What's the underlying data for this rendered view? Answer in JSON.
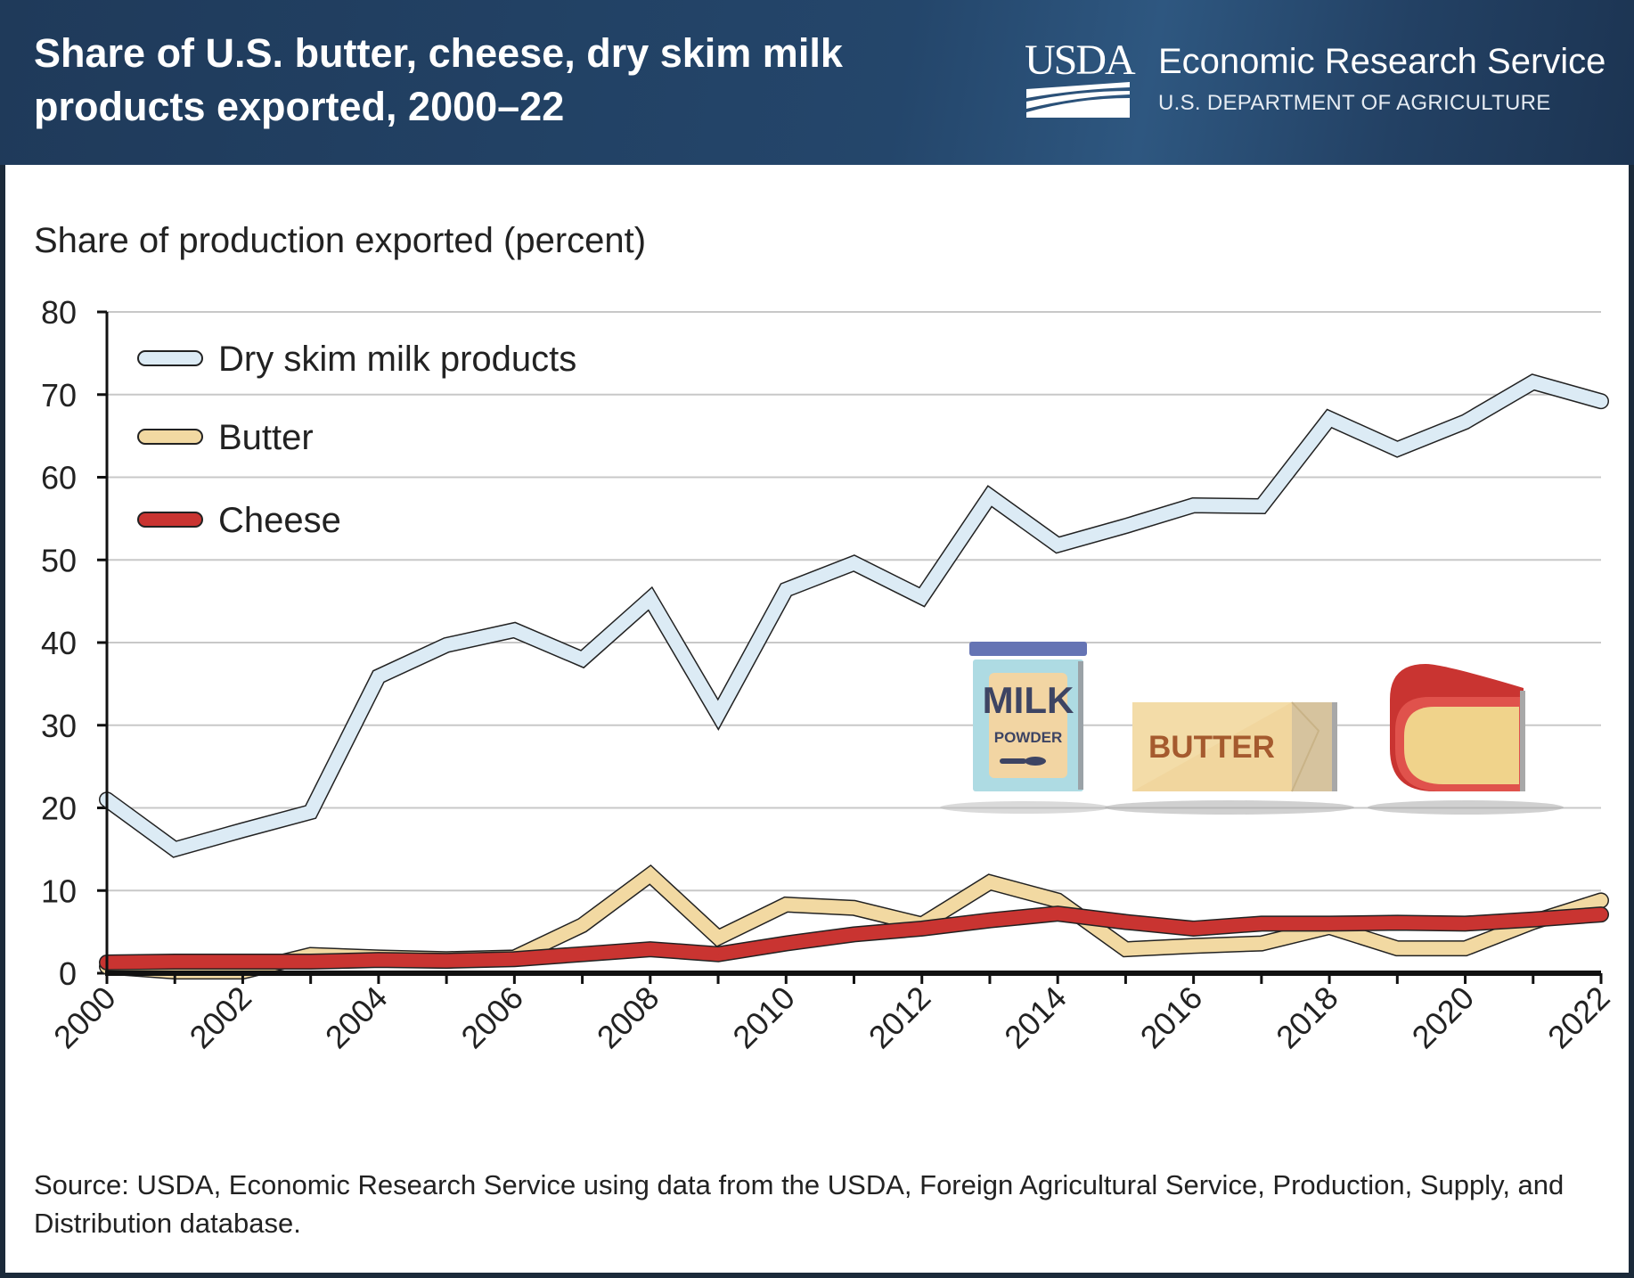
{
  "header": {
    "title": "Share of U.S. butter, cheese, dry skim milk products exported, 2000–22",
    "logo_text": "USDA",
    "agency": "Economic Research Service",
    "department": "U.S. DEPARTMENT OF AGRICULTURE"
  },
  "icons": {
    "milk_label_1": "MILK",
    "milk_label_2": "POWDER",
    "butter_label": "BUTTER"
  },
  "footer": {
    "source": "Source: USDA, Economic Research Service using data from the USDA, Foreign Agricultural Service, Production, Supply, and Distribution database."
  },
  "colors": {
    "header_bg": "#1f3a5a",
    "dry_skim": "#dcebf5",
    "butter": "#f2d9a2",
    "cheese": "#c93431",
    "outline": "#222222",
    "grid": "#c8c8c8"
  },
  "chart_data": {
    "type": "line",
    "title": "Share of U.S. butter, cheese, dry skim milk products exported, 2000–22",
    "xlabel": "",
    "ylabel": "Share of production exported (percent)",
    "ylim": [
      0,
      80
    ],
    "yticks": [
      0,
      10,
      20,
      30,
      40,
      50,
      60,
      70,
      80
    ],
    "x": [
      2000,
      2001,
      2002,
      2003,
      2004,
      2005,
      2006,
      2007,
      2008,
      2009,
      2010,
      2011,
      2012,
      2013,
      2014,
      2015,
      2016,
      2017,
      2018,
      2019,
      2020,
      2021,
      2022
    ],
    "xtick_labels": [
      "2000",
      "2002",
      "2004",
      "2006",
      "2008",
      "2010",
      "2012",
      "2014",
      "2016",
      "2018",
      "2020",
      "2022"
    ],
    "grid": true,
    "legend_position": "top-left",
    "series": [
      {
        "name": "Dry skim milk products",
        "color": "#dcebf5",
        "values": [
          21.0,
          15.0,
          17.3,
          19.5,
          35.9,
          39.7,
          41.5,
          38.0,
          45.3,
          31.3,
          46.4,
          49.6,
          45.5,
          57.7,
          51.8,
          54.1,
          56.6,
          56.5,
          67.1,
          63.4,
          66.7,
          71.5,
          69.2
        ]
      },
      {
        "name": "Butter",
        "color": "#f2d9a2",
        "values": [
          0.8,
          0.2,
          0.2,
          2.2,
          1.9,
          1.7,
          1.9,
          5.8,
          11.9,
          4.3,
          8.3,
          7.9,
          5.9,
          11.0,
          8.8,
          2.9,
          3.3,
          3.6,
          5.6,
          3.0,
          3.0,
          6.2,
          8.8
        ]
      },
      {
        "name": "Cheese",
        "color": "#c93431",
        "values": [
          1.3,
          1.4,
          1.4,
          1.4,
          1.6,
          1.5,
          1.7,
          2.3,
          2.9,
          2.3,
          3.6,
          4.7,
          5.4,
          6.4,
          7.2,
          6.2,
          5.4,
          6.0,
          6.0,
          6.1,
          6.0,
          6.5,
          7.1
        ]
      }
    ]
  }
}
